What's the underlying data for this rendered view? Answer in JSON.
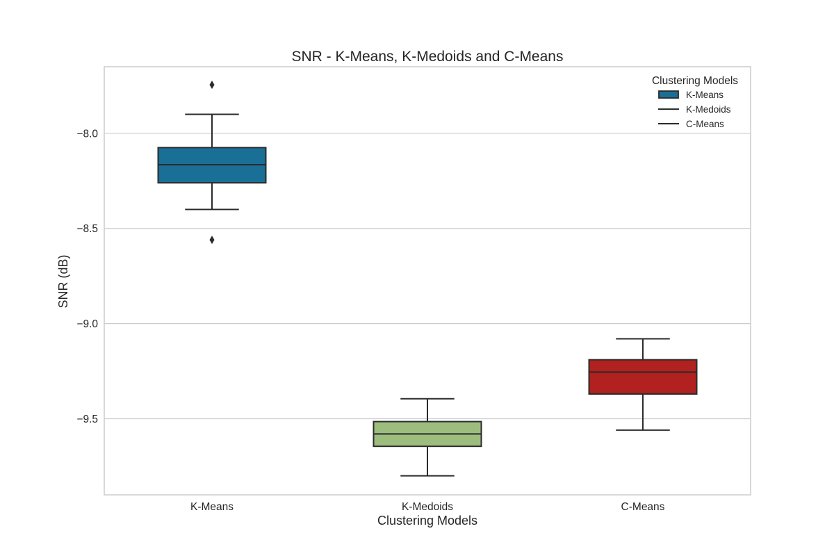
{
  "chart_data": {
    "type": "box",
    "title": "SNR - K-Means, K-Medoids and C-Means",
    "xlabel": "Clustering Models",
    "ylabel": "SNR (dB)",
    "ylim": [
      -9.9,
      -7.65
    ],
    "yticks": [
      -8.0,
      -8.5,
      -9.0,
      -9.5
    ],
    "ytick_labels": [
      "−8.0",
      "−8.5",
      "−9.0",
      "−9.5"
    ],
    "grid": "horizontal",
    "legend": {
      "title": "Clustering Models",
      "position": "top-right",
      "entries": [
        "K-Means",
        "K-Medoids",
        "C-Means"
      ]
    },
    "categories": [
      "K-Means",
      "K-Medoids",
      "C-Means"
    ],
    "boxes": [
      {
        "label": "K-Means",
        "color": "#1a6f97",
        "whisker_low": -8.4,
        "q1": -8.26,
        "median": -8.165,
        "q3": -8.075,
        "whisker_high": -7.9,
        "outliers": [
          -7.745,
          -8.56
        ]
      },
      {
        "label": "K-Medoids",
        "color": "#9dbd7e",
        "whisker_low": -9.8,
        "q1": -9.645,
        "median": -9.58,
        "q3": -9.515,
        "whisker_high": -9.395,
        "outliers": []
      },
      {
        "label": "C-Means",
        "color": "#b0211f",
        "whisker_low": -9.56,
        "q1": -9.37,
        "median": -9.255,
        "q3": -9.19,
        "whisker_high": -9.08,
        "outliers": []
      }
    ]
  }
}
